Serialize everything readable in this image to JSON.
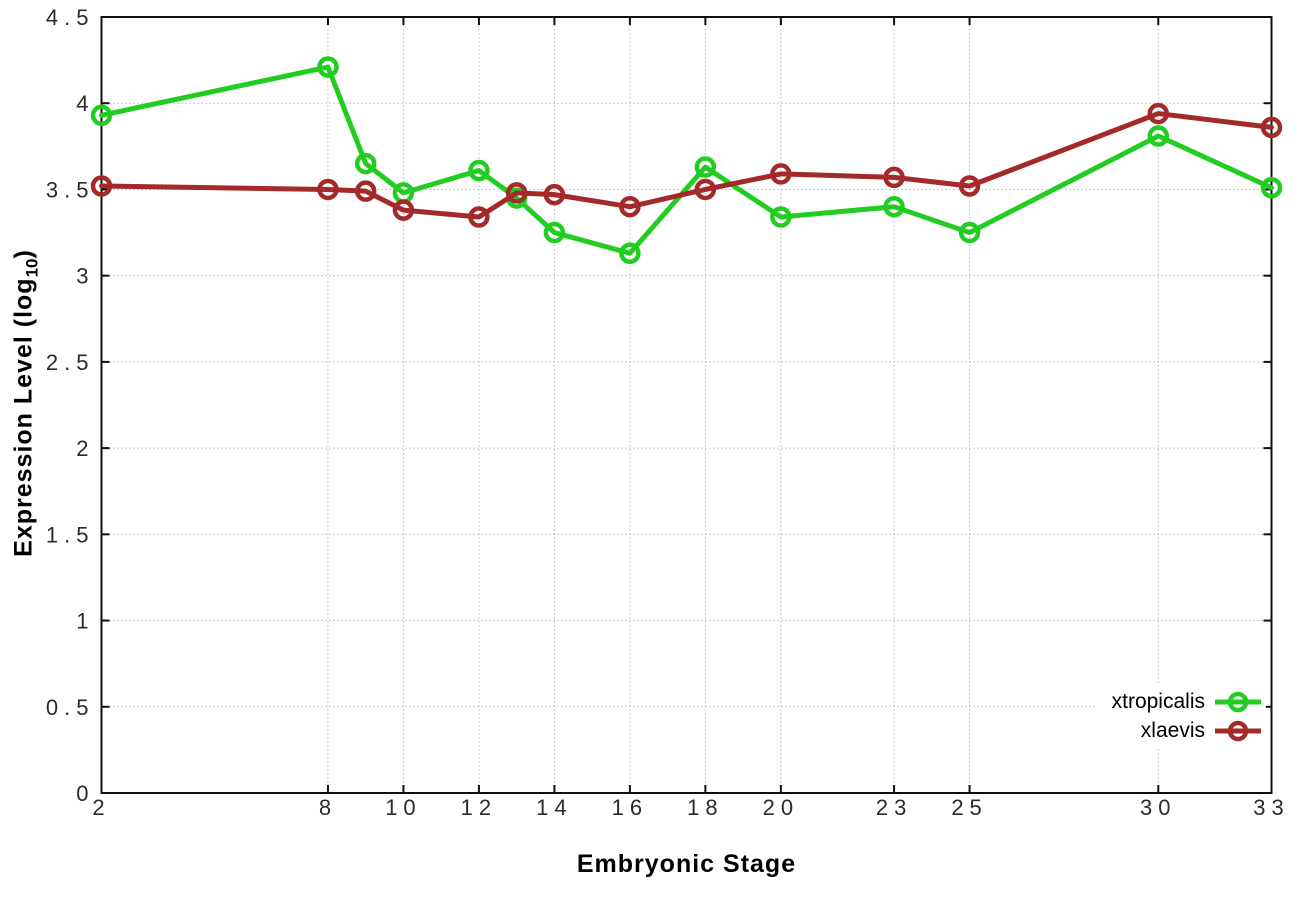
{
  "labels": {
    "y_title_prefix": "Expression Level (log",
    "y_title_sub": "10",
    "y_title_suffix": ")",
    "x_title": "Embryonic Stage"
  },
  "chart_data": {
    "type": "line",
    "title": "",
    "xlabel": "Embryonic Stage",
    "ylabel": "Expression Level (log10)",
    "x": [
      2,
      8,
      9,
      10,
      12,
      13,
      14,
      16,
      18,
      20,
      23,
      25,
      30,
      33
    ],
    "series": [
      {
        "name": "xtropicalis",
        "color": "#22cd22",
        "values": [
          3.93,
          4.21,
          3.65,
          3.48,
          3.61,
          3.45,
          3.25,
          3.13,
          3.63,
          3.34,
          3.4,
          3.25,
          3.81,
          3.51
        ]
      },
      {
        "name": "xlaevis",
        "color": "#a42a2a",
        "values": [
          3.52,
          3.5,
          3.49,
          3.38,
          3.34,
          3.48,
          3.47,
          3.4,
          3.5,
          3.59,
          3.57,
          3.52,
          3.94,
          3.86
        ]
      }
    ],
    "x_ticks": [
      2,
      8,
      10,
      12,
      14,
      16,
      18,
      20,
      23,
      25,
      30,
      33
    ],
    "y_ticks": [
      0,
      0.5,
      1,
      1.5,
      2,
      2.5,
      3,
      3.5,
      4,
      4.5
    ],
    "xlim": [
      2,
      33
    ],
    "ylim": [
      0,
      4.5
    ],
    "grid": true,
    "legend_position": "bottom-right-inside",
    "marker": "open-circle",
    "colors": {
      "border": "#0f0f0f",
      "grid": "#b8b8b8",
      "tick_text": "#2b2b2b"
    }
  }
}
